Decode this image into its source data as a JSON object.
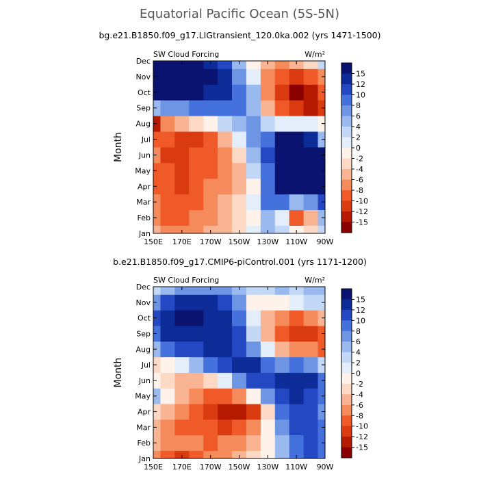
{
  "title": "Equatorial Pacific Ocean (5S-5N)",
  "colorbar": {
    "labels": [
      "15",
      "12",
      "10",
      "8",
      "6",
      "4",
      "2",
      "0",
      "-2",
      "-4",
      "-6",
      "-8",
      "-10",
      "-12",
      "-15"
    ],
    "colors": [
      "#8b0000",
      "#b51a00",
      "#d93a10",
      "#f05a28",
      "#f58a5a",
      "#f9b493",
      "#fcd9c4",
      "#fef2ea",
      "#e4eefb",
      "#c3d7f6",
      "#99b9ef",
      "#6d95e4",
      "#4571dc",
      "#2448c4",
      "#0e2c98",
      "#0a1470"
    ]
  },
  "panels": [
    {
      "id": "top",
      "subtitle": "bg.e21.B1850.f09_g17.LIGtransient_120.0ka.002 (yrs 1471-1500)",
      "left_label": "SW Cloud Forcing",
      "right_label": "W/m²"
    },
    {
      "id": "bottom",
      "subtitle": "b.e21.B1850.f09_g17.CMIP6-piControl.001 (yrs 1171-1200)",
      "left_label": "SW Cloud Forcing",
      "right_label": "W/m²"
    }
  ],
  "chart_data": [
    {
      "type": "heatmap",
      "title": "bg.e21.B1850.f09_g17.LIGtransient_120.0ka.002 (yrs 1471-1500)",
      "xlabel": "",
      "ylabel": "Month",
      "x_ticks": [
        "150E",
        "170E",
        "170W",
        "150W",
        "130W",
        "110W",
        "90W"
      ],
      "y_ticks": [
        "Jan",
        "Feb",
        "Mar",
        "Apr",
        "May",
        "Jun",
        "Jul",
        "Aug",
        "Sep",
        "Oct",
        "Nov",
        "Dec"
      ],
      "units": "W/m²",
      "z_levels": [
        -15,
        -12,
        -10,
        -8,
        -6,
        -4,
        -2,
        0,
        2,
        4,
        6,
        8,
        10,
        12,
        15
      ],
      "columns_lon": [
        "150E",
        "160E",
        "170E",
        "180",
        "170W",
        "160W",
        "150W",
        "140W",
        "130W",
        "120W",
        "110W",
        "100W",
        "90W"
      ],
      "rows_month": [
        "Jan",
        "Feb",
        "Mar",
        "Apr",
        "May",
        "Jun",
        "Jul",
        "Aug",
        "Sep",
        "Oct",
        "Nov",
        "Dec"
      ],
      "z": [
        [
          -6,
          -8,
          -8,
          -8,
          -6,
          -6,
          -4,
          0,
          4,
          2,
          -2,
          -4,
          2
        ],
        [
          -8,
          -10,
          -10,
          -8,
          -8,
          -6,
          -4,
          -2,
          4,
          0,
          -10,
          -6,
          4
        ],
        [
          -8,
          -10,
          -10,
          -10,
          -8,
          -6,
          -4,
          0,
          8,
          8,
          4,
          6,
          10
        ],
        [
          -10,
          -10,
          -12,
          -10,
          -8,
          -8,
          -6,
          -2,
          8,
          15,
          16,
          16,
          16
        ],
        [
          -10,
          -10,
          -12,
          -10,
          -10,
          -8,
          -6,
          2,
          8,
          16,
          16,
          16,
          16
        ],
        [
          -8,
          -12,
          -12,
          -10,
          -10,
          -8,
          -4,
          4,
          10,
          16,
          16,
          16,
          16
        ],
        [
          -10,
          -10,
          -12,
          -12,
          -10,
          -6,
          0,
          6,
          8,
          16,
          16,
          14,
          4
        ],
        [
          -14,
          -8,
          -6,
          -4,
          -2,
          2,
          4,
          6,
          2,
          0,
          0,
          0,
          -2
        ],
        [
          4,
          6,
          6,
          8,
          8,
          8,
          8,
          4,
          -6,
          -10,
          -12,
          -14,
          -12
        ],
        [
          15,
          15,
          15,
          15,
          14,
          12,
          8,
          4,
          -8,
          -12,
          -16,
          -14,
          -10
        ],
        [
          15,
          16,
          16,
          16,
          15,
          12,
          6,
          0,
          -8,
          -10,
          -12,
          -10,
          -8
        ],
        [
          15,
          15,
          15,
          15,
          12,
          10,
          4,
          -2,
          -6,
          -8,
          -6,
          -4,
          2
        ]
      ]
    },
    {
      "type": "heatmap",
      "title": "b.e21.B1850.f09_g17.CMIP6-piControl.001 (yrs 1171-1200)",
      "xlabel": "",
      "ylabel": "Month",
      "x_ticks": [
        "150E",
        "170E",
        "170W",
        "150W",
        "130W",
        "110W",
        "90W"
      ],
      "y_ticks": [
        "Jan",
        "Feb",
        "Mar",
        "Apr",
        "May",
        "Jun",
        "Jul",
        "Aug",
        "Sep",
        "Oct",
        "Nov",
        "Dec"
      ],
      "units": "W/m²",
      "z_levels": [
        -15,
        -12,
        -10,
        -8,
        -6,
        -4,
        -2,
        0,
        2,
        4,
        6,
        8,
        10,
        12,
        15
      ],
      "columns_lon": [
        "150E",
        "160E",
        "170E",
        "180",
        "170W",
        "160W",
        "150W",
        "140W",
        "130W",
        "120W",
        "110W",
        "100W",
        "90W"
      ],
      "rows_month": [
        "Jan",
        "Feb",
        "Mar",
        "Apr",
        "May",
        "Jun",
        "Jul",
        "Aug",
        "Sep",
        "Oct",
        "Nov",
        "Dec"
      ],
      "z": [
        [
          -8,
          -10,
          -12,
          -10,
          -8,
          -8,
          -6,
          -4,
          -2,
          4,
          8,
          10,
          8
        ],
        [
          -6,
          -8,
          -8,
          -8,
          -10,
          -8,
          -8,
          -6,
          -2,
          4,
          8,
          10,
          8
        ],
        [
          -6,
          -8,
          -10,
          -10,
          -10,
          -12,
          -10,
          -8,
          -2,
          6,
          10,
          10,
          8
        ],
        [
          -4,
          -6,
          -8,
          -10,
          -12,
          -14,
          -15,
          -12,
          -4,
          8,
          10,
          10,
          6
        ],
        [
          4,
          -2,
          -6,
          -8,
          -10,
          -10,
          -8,
          -2,
          6,
          10,
          12,
          10,
          8
        ],
        [
          -2,
          -4,
          -6,
          -6,
          -4,
          0,
          6,
          10,
          10,
          12,
          14,
          12,
          8
        ],
        [
          -4,
          -2,
          0,
          4,
          8,
          10,
          12,
          12,
          8,
          6,
          8,
          6,
          2
        ],
        [
          4,
          8,
          10,
          10,
          12,
          12,
          10,
          6,
          0,
          -6,
          -8,
          -8,
          -10
        ],
        [
          8,
          12,
          12,
          12,
          14,
          12,
          10,
          2,
          -6,
          -10,
          -12,
          -12,
          -10
        ],
        [
          10,
          14,
          15,
          15,
          14,
          12,
          8,
          0,
          -6,
          -8,
          -10,
          -8,
          -6
        ],
        [
          6,
          10,
          12,
          12,
          12,
          10,
          6,
          -2,
          -2,
          -2,
          0,
          2,
          2
        ],
        [
          2,
          4,
          6,
          6,
          6,
          6,
          4,
          2,
          2,
          4,
          2,
          4,
          4
        ]
      ]
    }
  ]
}
